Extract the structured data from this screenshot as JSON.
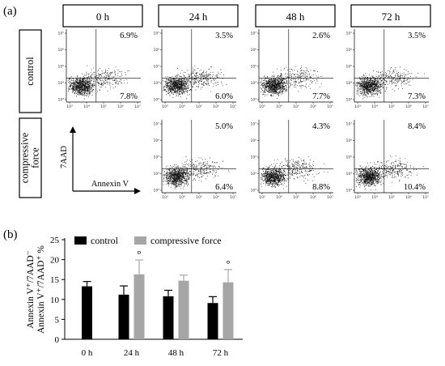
{
  "panel_a": {
    "label": "(a)",
    "time_headers": [
      "0 h",
      "24 h",
      "48 h",
      "72 h"
    ],
    "row_labels": [
      "control",
      "compressive force"
    ],
    "row_label_lines": [
      [
        "control"
      ],
      [
        "compressive",
        "force"
      ]
    ],
    "axis_y_label": "7AAD",
    "axis_x_label": "Annexin V",
    "tick_labels": [
      "10³",
      "10⁴",
      "10⁵",
      "10⁶",
      "10⁷"
    ],
    "quadrant_values": {
      "control": [
        {
          "time": "0 h",
          "upper_right": "6.9%",
          "lower_right": "7.8%"
        },
        {
          "time": "24 h",
          "upper_right": "3.5%",
          "lower_right": "6.0%"
        },
        {
          "time": "48 h",
          "upper_right": "2.6%",
          "lower_right": "7.7%"
        },
        {
          "time": "72 h",
          "upper_right": "3.5%",
          "lower_right": "7.3%"
        }
      ],
      "compressive force": [
        {
          "time": "24 h",
          "upper_right": "5.0%",
          "lower_right": "6.4%"
        },
        {
          "time": "48 h",
          "upper_right": "4.3%",
          "lower_right": "8.8%"
        },
        {
          "time": "72 h",
          "upper_right": "8.4%",
          "lower_right": "10.4%"
        }
      ]
    }
  },
  "panel_b": {
    "label": "(b)"
  },
  "chart_data": {
    "type": "bar",
    "categories": [
      "0 h",
      "24 h",
      "48 h",
      "72 h"
    ],
    "ylabel_lines": [
      "Annexin V⁺/7AAD⁻",
      "Annexin V⁺/7AAD⁺ %"
    ],
    "ylim": [
      0,
      25
    ],
    "yticks": [
      0,
      5,
      10,
      15,
      20,
      25
    ],
    "grid": false,
    "legend_position": "top",
    "series": [
      {
        "name": "control",
        "color": "#000000",
        "values": [
          13.3,
          11.2,
          10.8,
          9.1
        ],
        "errors": [
          1.2,
          2.2,
          1.5,
          1.6
        ]
      },
      {
        "name": "compressive force",
        "color": "#a6a6a6",
        "values": [
          null,
          16.3,
          14.7,
          14.3
        ],
        "errors": [
          null,
          3.6,
          1.4,
          3.2
        ]
      }
    ],
    "significance_marker": "°",
    "significance": [
      {
        "category": "24 h",
        "series": "compressive force"
      },
      {
        "category": "72 h",
        "series": "compressive force"
      }
    ]
  }
}
